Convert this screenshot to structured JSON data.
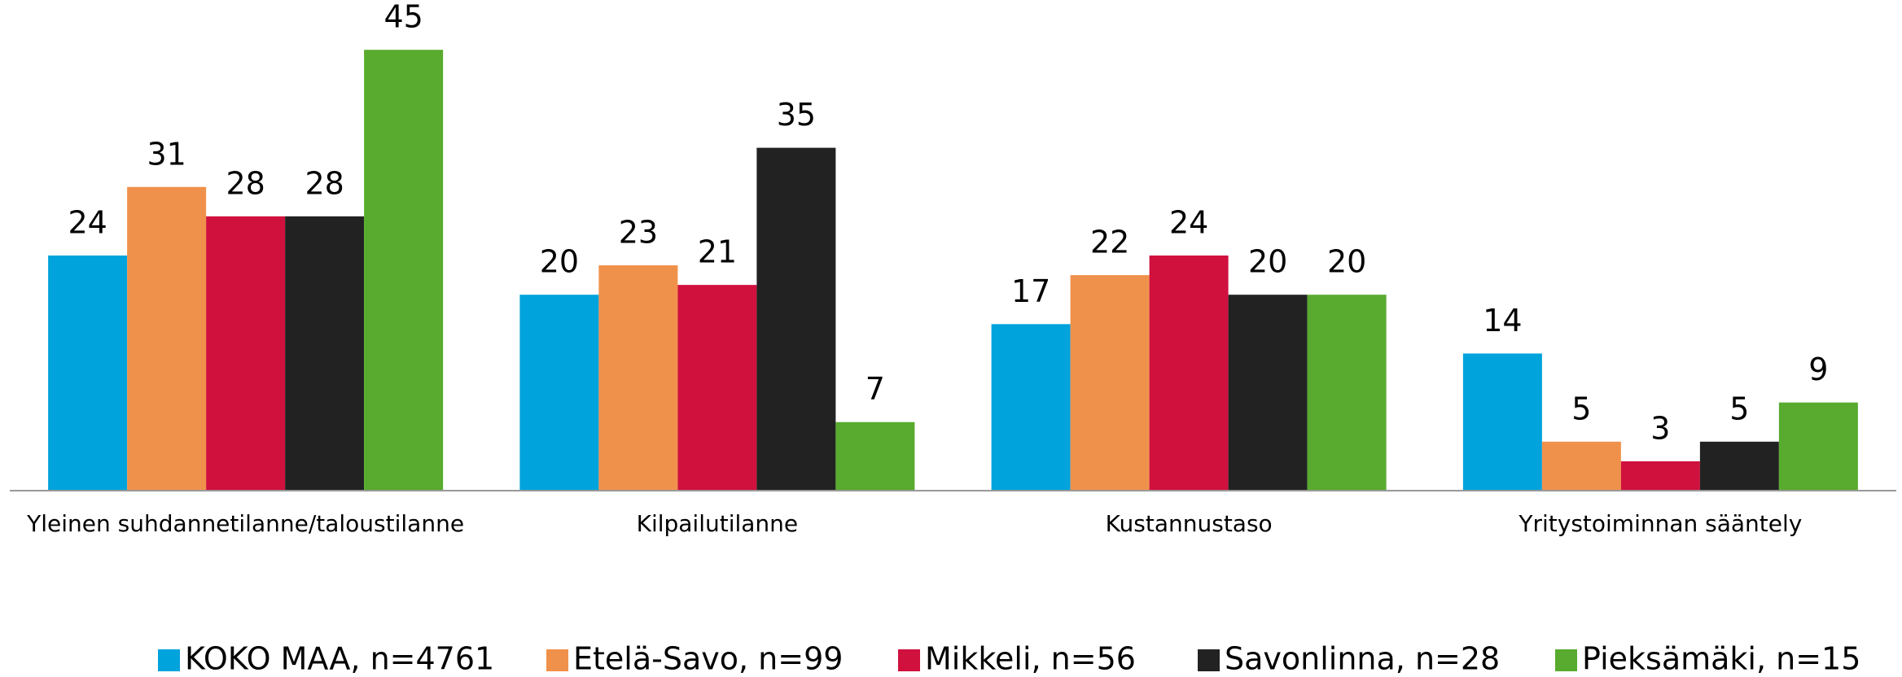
{
  "chart_data": {
    "type": "bar",
    "categories": [
      "Yleinen suhdannetilanne/taloustilanne",
      "Kilpailutilanne",
      "Kustannustaso",
      "Yritystoiminnan sääntely"
    ],
    "series": [
      {
        "name": "KOKO MAA, n=4761",
        "color": "#00a3dc",
        "values": [
          24,
          20,
          17,
          14
        ]
      },
      {
        "name": "Etelä-Savo, n=99",
        "color": "#f0914b",
        "values": [
          31,
          23,
          22,
          5
        ]
      },
      {
        "name": "Mikkeli, n=56",
        "color": "#d0103d",
        "values": [
          28,
          21,
          24,
          3
        ]
      },
      {
        "name": "Savonlinna, n=28",
        "color": "#222222",
        "values": [
          28,
          35,
          20,
          5
        ]
      },
      {
        "name": "Pieksämäki, n=15",
        "color": "#58ab2e",
        "values": [
          45,
          7,
          20,
          9
        ]
      }
    ],
    "ylim": [
      0,
      50
    ],
    "legend": "bottom"
  }
}
